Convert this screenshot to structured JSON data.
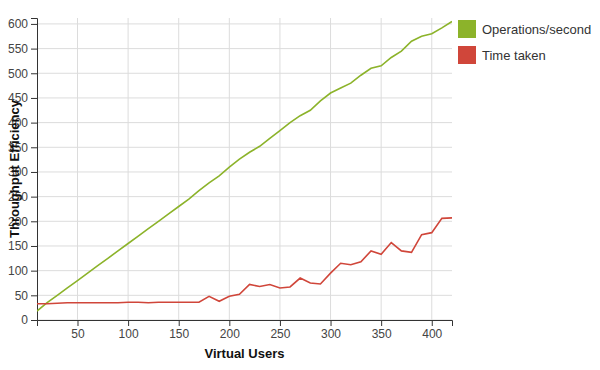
{
  "chart_data": {
    "type": "line",
    "x_label": "Virtual Users",
    "y_label": "Throughput Efficiency",
    "x": [
      10,
      20,
      30,
      40,
      50,
      60,
      70,
      80,
      90,
      100,
      110,
      120,
      130,
      140,
      150,
      160,
      170,
      180,
      190,
      200,
      210,
      220,
      230,
      240,
      250,
      260,
      270,
      280,
      290,
      300,
      310,
      320,
      330,
      340,
      350,
      360,
      370,
      380,
      390,
      400,
      410,
      420
    ],
    "series": [
      {
        "name": "Operations/second",
        "color": "#8cb32a",
        "values": [
          18,
          35,
          50,
          65,
          80,
          95,
          110,
          125,
          140,
          155,
          170,
          185,
          200,
          215,
          230,
          245,
          262,
          278,
          292,
          310,
          326,
          340,
          352,
          368,
          384,
          400,
          414,
          425,
          444,
          460,
          470,
          480,
          496,
          510,
          515,
          532,
          545,
          565,
          575,
          580,
          592,
          605
        ]
      },
      {
        "name": "Time taken",
        "color": "#d0463a",
        "values": [
          33,
          33,
          34,
          35,
          35,
          35,
          35,
          35,
          35,
          36,
          36,
          35,
          36,
          36,
          36,
          36,
          36,
          48,
          38,
          48,
          52,
          72,
          68,
          72,
          65,
          67,
          85,
          75,
          73,
          95,
          115,
          112,
          118,
          140,
          133,
          157,
          140,
          137,
          173,
          177,
          206,
          207
        ]
      }
    ],
    "xlim": [
      10,
      420
    ],
    "ylim": [
      0,
      612
    ],
    "xticks": [
      50,
      100,
      150,
      200,
      250,
      300,
      350,
      400
    ],
    "yticks": [
      0,
      50,
      100,
      150,
      200,
      250,
      300,
      350,
      400,
      450,
      500,
      550,
      600
    ],
    "grid": true,
    "legend": "right"
  }
}
